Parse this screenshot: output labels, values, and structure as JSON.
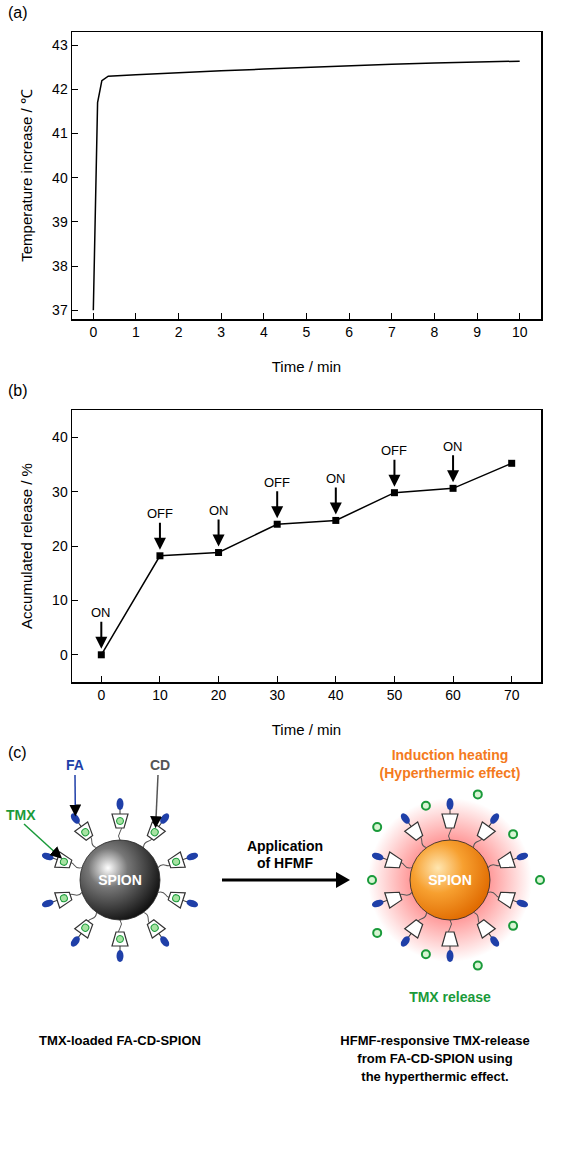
{
  "chart_data": [
    {
      "panel_label": "(a)",
      "type": "line",
      "x": [
        0,
        0.1,
        0.2,
        0.35,
        1,
        2,
        3,
        4,
        5,
        6,
        7,
        8,
        9,
        10
      ],
      "values": [
        37,
        41.7,
        42.2,
        42.3,
        42.33,
        42.38,
        42.42,
        42.46,
        42.5,
        42.53,
        42.57,
        42.6,
        42.62,
        42.64
      ],
      "color": "#000000",
      "x_label": "Time / min",
      "y_label": "Temperature increase / ℃",
      "xlim": [
        -0.5,
        10.5
      ],
      "xticks": [
        0,
        1,
        2,
        3,
        4,
        5,
        6,
        7,
        8,
        9,
        10
      ],
      "ylim": [
        36.8,
        43.3
      ],
      "yticks": [
        37,
        38,
        39,
        40,
        41,
        42,
        43
      ],
      "grid": false
    },
    {
      "panel_label": "(b)",
      "type": "line",
      "x": [
        0,
        10,
        20,
        30,
        40,
        50,
        60,
        70
      ],
      "values": [
        0,
        18.2,
        18.8,
        24.0,
        24.7,
        29.8,
        30.6,
        35.2
      ],
      "color": "#000000",
      "marker": "square",
      "x_label": "Time / min",
      "y_label": "Accumulated release / %",
      "xlim": [
        -5,
        75
      ],
      "xticks": [
        0,
        10,
        20,
        30,
        40,
        50,
        60,
        70
      ],
      "ylim": [
        -5,
        45
      ],
      "yticks": [
        0,
        10,
        20,
        30,
        40
      ],
      "grid": false,
      "annotations": [
        {
          "x": 0,
          "text": "ON"
        },
        {
          "x": 10,
          "text": "OFF"
        },
        {
          "x": 20,
          "text": "ON"
        },
        {
          "x": 30,
          "text": "OFF"
        },
        {
          "x": 40,
          "text": "ON"
        },
        {
          "x": 50,
          "text": "OFF"
        },
        {
          "x": 60,
          "text": "ON"
        }
      ]
    }
  ],
  "diagram": {
    "panel_label": "(c)",
    "left": {
      "core": "SPION",
      "fa": "FA",
      "cd": "CD",
      "tmx": "TMX",
      "caption": "TMX-loaded FA-CD-SPION"
    },
    "arrow_label": "Application of HFMF",
    "right": {
      "core": "SPION",
      "heating": [
        "Induction heating",
        "(Hyperthermic effect)"
      ],
      "release": "TMX release",
      "caption": [
        "HFMF-responsive TMX-release",
        "from FA-CD-SPION using",
        "the hyperthermic effect."
      ]
    }
  }
}
